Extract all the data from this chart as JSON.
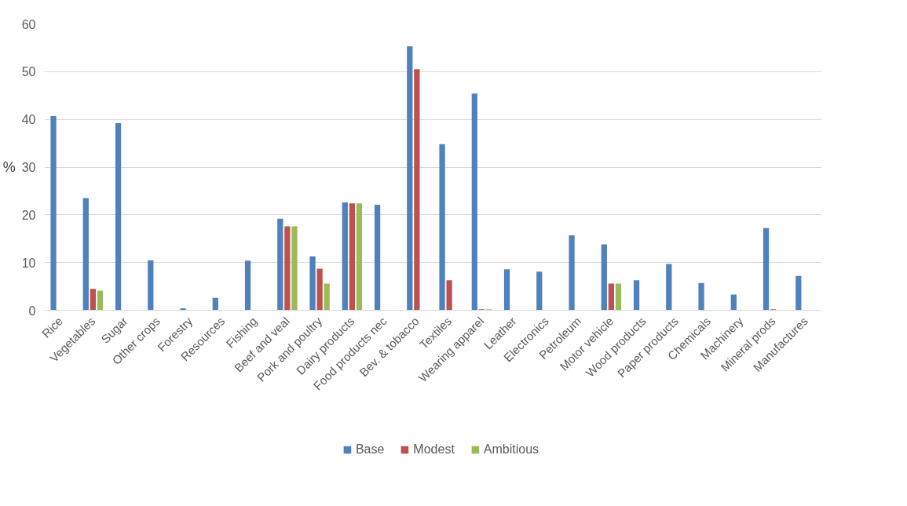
{
  "chart_data": {
    "type": "bar",
    "ylabel": "%",
    "categories": [
      "Rice",
      "Vegetables",
      "Sugar",
      "Other crops",
      "Forestry",
      "Resources",
      "Fishing",
      "Beef and veal",
      "Pork and poultry",
      "Dairy products",
      "Food products nec",
      "Bev. & tobacco",
      "Textiles",
      "Wearing apparel",
      "Leather",
      "Electronics",
      "Petroleum",
      "Motor vehicle",
      "Wood products",
      "Paper products",
      "Chemicals",
      "Machinery",
      "Mineral prods",
      "Manufactures"
    ],
    "series": [
      {
        "name": "Base",
        "color": "#4f81bd",
        "values": [
          40.7,
          23.5,
          39.2,
          10.5,
          0.4,
          2.6,
          10.4,
          19.2,
          11.3,
          22.6,
          22.1,
          55.3,
          34.8,
          45.4,
          8.6,
          8.1,
          15.7,
          13.8,
          6.3,
          9.7,
          5.7,
          3.3,
          17.2,
          7.2
        ]
      },
      {
        "name": "Modest",
        "color": "#c0504d",
        "values": [
          0,
          4.5,
          0,
          0,
          0,
          0,
          0,
          17.6,
          8.7,
          22.4,
          0,
          50.5,
          6.3,
          0.2,
          0,
          0,
          0,
          5.6,
          0,
          0,
          0,
          0,
          0.2,
          0
        ]
      },
      {
        "name": "Ambitious",
        "color": "#9bbb59",
        "values": [
          0,
          4.1,
          0,
          0,
          0,
          0,
          0,
          17.6,
          5.6,
          22.4,
          0,
          0,
          0,
          0.2,
          0,
          0,
          0,
          5.6,
          0,
          0,
          0,
          0,
          0,
          0
        ]
      }
    ],
    "ylim": [
      0,
      60
    ],
    "yticks": [
      0,
      10,
      20,
      30,
      40,
      50,
      60
    ],
    "grid": "y",
    "legend": "bottom"
  }
}
